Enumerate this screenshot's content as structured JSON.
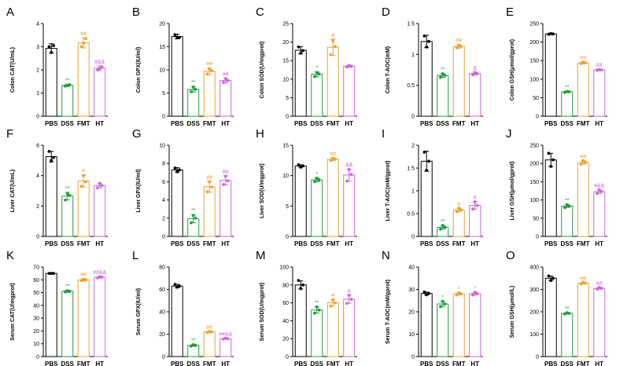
{
  "colors": {
    "PBS": "#000000",
    "DSS": "#1e9e3c",
    "FMT": "#f0a030",
    "HT": "#cc66dd"
  },
  "chart_data": [
    {
      "letter": "A",
      "type": "bar",
      "ylabel": "Colon CAT(U/mL)",
      "categories": [
        "PBS",
        "DSS",
        "FMT",
        "HT"
      ],
      "yticks": [
        0,
        1,
        2,
        3,
        4
      ],
      "ylim": [
        0,
        4
      ],
      "values": [
        2.93,
        1.33,
        3.17,
        2.07
      ],
      "errors": [
        0.2,
        0.05,
        0.22,
        0.1
      ],
      "points": [
        [
          3.0,
          2.75,
          3.05
        ],
        [
          1.3,
          1.33,
          1.36
        ],
        [
          3.0,
          3.15,
          3.35
        ],
        [
          2.0,
          2.07,
          2.13
        ]
      ],
      "sig": [
        "",
        "**",
        "##",
        "#&&"
      ]
    },
    {
      "letter": "B",
      "type": "bar",
      "ylabel": "Colon GPX(IU/ml)",
      "categories": [
        "PBS",
        "DSS",
        "FMT",
        "HT"
      ],
      "yticks": [
        0,
        5,
        10,
        15,
        20
      ],
      "ylim": [
        0,
        20
      ],
      "values": [
        17.2,
        5.8,
        9.7,
        7.7
      ],
      "errors": [
        0.5,
        0.6,
        0.7,
        0.5
      ],
      "points": [
        [
          17.6,
          17.0,
          17.0
        ],
        [
          5.3,
          6.3,
          5.8
        ],
        [
          9.1,
          10.2,
          9.8
        ],
        [
          7.3,
          8.1,
          7.7
        ]
      ],
      "sig": [
        "",
        "**",
        "##",
        "##"
      ]
    },
    {
      "letter": "C",
      "type": "bar",
      "ylabel": "Colon SOD(U/mgprot)",
      "categories": [
        "PBS",
        "DSS",
        "FMT",
        "HT"
      ],
      "yticks": [
        0,
        5,
        10,
        15,
        20,
        25
      ],
      "ylim": [
        0,
        25
      ],
      "values": [
        17.8,
        11.3,
        18.6,
        13.5
      ],
      "errors": [
        1.0,
        0.7,
        2.2,
        0.3
      ],
      "points": [
        [
          18.7,
          17.0,
          17.7
        ],
        [
          10.7,
          11.8,
          11.4
        ],
        [
          16.6,
          20.4,
          18.8
        ],
        [
          13.3,
          13.7,
          13.5
        ]
      ],
      "sig": [
        "",
        "*",
        "#",
        ""
      ]
    },
    {
      "letter": "D",
      "type": "bar",
      "ylabel": "Colon T-AOC(mM)",
      "categories": [
        "PBS",
        "DSS",
        "FMT",
        "HT"
      ],
      "yticks": [
        0,
        0.5,
        1.0,
        1.5
      ],
      "ylim": [
        0,
        1.5
      ],
      "values": [
        1.21,
        0.66,
        1.13,
        0.69
      ],
      "errors": [
        0.1,
        0.03,
        0.03,
        0.02
      ],
      "points": [
        [
          1.3,
          1.12,
          1.21
        ],
        [
          0.63,
          0.69,
          0.66
        ],
        [
          1.11,
          1.15,
          1.13
        ],
        [
          0.67,
          0.71,
          0.69
        ]
      ],
      "sig": [
        "",
        "**",
        "##",
        "&"
      ]
    },
    {
      "letter": "E",
      "type": "bar",
      "ylabel": "Colon GSH(μmol/gprot)",
      "categories": [
        "PBS",
        "DSS",
        "FMT",
        "HT"
      ],
      "yticks": [
        0,
        50,
        100,
        150,
        200,
        250
      ],
      "ylim": [
        0,
        250
      ],
      "values": [
        222,
        66,
        144,
        125
      ],
      "errors": [
        2,
        2,
        3,
        2
      ],
      "points": [
        [
          221,
          223,
          222
        ],
        [
          64,
          67,
          66
        ],
        [
          142,
          146,
          144
        ],
        [
          124,
          126,
          125
        ]
      ],
      "sig": [
        "",
        "**",
        "##",
        "##"
      ]
    },
    {
      "letter": "F",
      "type": "bar",
      "ylabel": "Liver CAT(U/mL)",
      "categories": [
        "PBS",
        "DSS",
        "FMT",
        "HT"
      ],
      "yticks": [
        0,
        2,
        4,
        6
      ],
      "ylim": [
        0,
        6
      ],
      "values": [
        5.25,
        2.65,
        3.65,
        3.35
      ],
      "errors": [
        0.35,
        0.25,
        0.4,
        0.15
      ],
      "points": [
        [
          5.6,
          5.0,
          5.2
        ],
        [
          2.4,
          2.8,
          2.7
        ],
        [
          3.3,
          4.0,
          3.6
        ],
        [
          3.2,
          3.5,
          3.35
        ]
      ],
      "sig": [
        "",
        "**",
        "#",
        ""
      ]
    },
    {
      "letter": "G",
      "type": "bar",
      "ylabel": "Liver GPX(IU/ml)",
      "categories": [
        "PBS",
        "DSS",
        "FMT",
        "HT"
      ],
      "yticks": [
        0,
        2,
        4,
        6,
        8,
        10
      ],
      "ylim": [
        0,
        10
      ],
      "values": [
        7.3,
        1.95,
        5.45,
        6.15
      ],
      "errors": [
        0.25,
        0.45,
        0.6,
        0.5
      ],
      "points": [
        [
          7.5,
          7.1,
          7.3
        ],
        [
          1.5,
          2.3,
          2.0
        ],
        [
          4.9,
          6.0,
          5.4
        ],
        [
          5.7,
          6.6,
          6.1
        ]
      ],
      "sig": [
        "",
        "**",
        "##",
        "##"
      ]
    },
    {
      "letter": "H",
      "type": "bar",
      "ylabel": "Liver SOD(U/mgprot)",
      "categories": [
        "PBS",
        "DSS",
        "FMT",
        "HT"
      ],
      "yticks": [
        0,
        5,
        10,
        15
      ],
      "ylim": [
        0,
        15
      ],
      "values": [
        11.6,
        9.3,
        12.7,
        10.1
      ],
      "errors": [
        0.2,
        0.3,
        0.2,
        1.0
      ],
      "points": [
        [
          11.8,
          11.4,
          11.6
        ],
        [
          9.0,
          9.6,
          9.3
        ],
        [
          12.5,
          12.9,
          12.7
        ],
        [
          9.1,
          11.0,
          10.2
        ]
      ],
      "sig": [
        "",
        "*",
        "##",
        "&&"
      ]
    },
    {
      "letter": "I",
      "type": "bar",
      "ylabel": "Liver T-AOC(mM/gprot)",
      "categories": [
        "PBS",
        "DSS",
        "FMT",
        "HT"
      ],
      "yticks": [
        0,
        0.5,
        1.0,
        1.5,
        2.0
      ],
      "ylim": [
        0,
        2
      ],
      "values": [
        1.65,
        0.2,
        0.58,
        0.68
      ],
      "errors": [
        0.22,
        0.04,
        0.04,
        0.08
      ],
      "points": [
        [
          1.85,
          1.45,
          1.65
        ],
        [
          0.16,
          0.24,
          0.2
        ],
        [
          0.54,
          0.62,
          0.58
        ],
        [
          0.6,
          0.76,
          0.68
        ]
      ],
      "sig": [
        "",
        "**",
        "#",
        "#"
      ]
    },
    {
      "letter": "J",
      "type": "bar",
      "ylabel": "Liver GSH(μmol/gprot)",
      "categories": [
        "PBS",
        "DSS",
        "FMT",
        "HT"
      ],
      "yticks": [
        0,
        50,
        100,
        150,
        200,
        250
      ],
      "ylim": [
        0,
        250
      ],
      "values": [
        210,
        83,
        203,
        123
      ],
      "errors": [
        18,
        4,
        5,
        5
      ],
      "points": [
        [
          228,
          192,
          210
        ],
        [
          79,
          87,
          83
        ],
        [
          198,
          208,
          203
        ],
        [
          118,
          128,
          123
        ]
      ],
      "sig": [
        "",
        "**",
        "##",
        "#&&"
      ]
    },
    {
      "letter": "K",
      "type": "bar",
      "ylabel": "Serum CAT(U/mgprot)",
      "categories": [
        "PBS",
        "DSS",
        "FMT",
        "HT"
      ],
      "yticks": [
        0,
        10,
        20,
        30,
        40,
        50,
        60,
        70
      ],
      "ylim": [
        0,
        70
      ],
      "values": [
        65,
        51,
        60,
        62
      ],
      "errors": [
        0.5,
        0.8,
        1,
        0.6
      ],
      "points": [
        [
          65,
          65,
          65
        ],
        [
          50.5,
          51.5,
          51
        ],
        [
          59.5,
          60.5,
          60
        ],
        [
          61.5,
          62.5,
          62
        ]
      ],
      "sig": [
        "",
        "**",
        "##",
        "##&&"
      ]
    },
    {
      "letter": "L",
      "type": "bar",
      "ylabel": "Serum GPX(IU/ml)",
      "categories": [
        "PBS",
        "DSS",
        "FMT",
        "HT"
      ],
      "yticks": [
        0,
        20,
        40,
        60,
        80
      ],
      "ylim": [
        0,
        80
      ],
      "values": [
        63,
        10,
        22,
        16
      ],
      "errors": [
        1.5,
        0.8,
        0.6,
        0.6
      ],
      "points": [
        [
          64.5,
          62,
          63
        ],
        [
          9.3,
          10.7,
          10
        ],
        [
          21.5,
          22.5,
          22
        ],
        [
          15.5,
          16.5,
          16
        ]
      ],
      "sig": [
        "",
        "**",
        "##",
        "##&&"
      ]
    },
    {
      "letter": "M",
      "type": "bar",
      "ylabel": "Serum SOD(U/mgprot)",
      "categories": [
        "PBS",
        "DSS",
        "FMT",
        "HT"
      ],
      "yticks": [
        0,
        20,
        40,
        60,
        80,
        100
      ],
      "ylim": [
        0,
        100
      ],
      "values": [
        80,
        52,
        60,
        64
      ],
      "errors": [
        4.5,
        3.5,
        3.5,
        4.5
      ],
      "points": [
        [
          85,
          76,
          80
        ],
        [
          48.5,
          55.5,
          52
        ],
        [
          56.5,
          63.5,
          60
        ],
        [
          59.5,
          68.5,
          64
        ]
      ],
      "sig": [
        "",
        "**",
        "#",
        "#"
      ]
    },
    {
      "letter": "N",
      "type": "bar",
      "ylabel": "Serum T-AOC(mM/gprot)",
      "categories": [
        "PBS",
        "DSS",
        "FMT",
        "HT"
      ],
      "yticks": [
        0,
        10,
        20,
        30,
        40
      ],
      "ylim": [
        0,
        40
      ],
      "values": [
        28.2,
        23.5,
        28.0,
        28.1
      ],
      "errors": [
        0.6,
        1.2,
        0.5,
        0.6
      ],
      "points": [
        [
          28.8,
          27.6,
          28.2
        ],
        [
          22.3,
          24.7,
          23.5
        ],
        [
          27.5,
          28.5,
          28.0
        ],
        [
          27.5,
          28.7,
          28.1
        ]
      ],
      "sig": [
        "",
        "*",
        "*",
        "*"
      ]
    },
    {
      "letter": "O",
      "type": "bar",
      "ylabel": "Serum GSH(μmol/L)",
      "categories": [
        "PBS",
        "DSS",
        "FMT",
        "HT"
      ],
      "yticks": [
        0,
        100,
        200,
        300,
        400
      ],
      "ylim": [
        0,
        400
      ],
      "values": [
        350,
        193,
        328,
        305
      ],
      "errors": [
        10,
        3,
        4,
        4
      ],
      "points": [
        [
          360,
          340,
          350
        ],
        [
          190,
          196,
          193
        ],
        [
          324,
          332,
          328
        ],
        [
          301,
          309,
          305
        ]
      ],
      "sig": [
        "",
        "**",
        "##",
        "##"
      ]
    }
  ]
}
